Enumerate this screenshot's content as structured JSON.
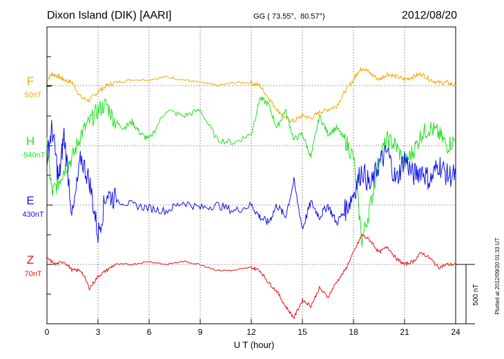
{
  "chart_data": {
    "type": "line",
    "title_left": "Dixon Island (DIK)  [AARI]",
    "title_center": "GG ( 73.55°,  80.57°)",
    "title_right": "2012/08/20",
    "xlabel": "U T (hour)",
    "xlim": [
      0,
      24
    ],
    "xticks": [
      "0",
      "3",
      "6",
      "9",
      "12",
      "15",
      "18",
      "21",
      "24"
    ],
    "grid": true,
    "scale_bar_label": "500 nT",
    "plotted_note": "Plotted at 2012/09/20 01:33 UT",
    "series": [
      {
        "name": "F",
        "baseline_label": "50nT",
        "color": "#f5a800",
        "x": [
          0,
          0.3,
          0.7,
          1.0,
          1.5,
          2.0,
          2.5,
          3.0,
          3.5,
          4.0,
          5.0,
          6.0,
          7.0,
          8.0,
          9.0,
          10.0,
          11.0,
          12.0,
          12.5,
          13.0,
          13.5,
          14.0,
          14.5,
          15.0,
          15.5,
          16.0,
          16.5,
          17.0,
          17.5,
          18.0,
          18.3,
          18.6,
          19.0,
          19.5,
          20.0,
          20.5,
          21.0,
          21.5,
          22.0,
          22.5,
          23.0,
          23.5,
          24.0
        ],
        "values": [
          10,
          20,
          15,
          10,
          5,
          -20,
          -25,
          -10,
          0,
          5,
          10,
          10,
          15,
          10,
          5,
          0,
          5,
          5,
          0,
          -20,
          -40,
          -55,
          -60,
          -50,
          -55,
          -45,
          -40,
          -35,
          -10,
          10,
          25,
          30,
          20,
          10,
          20,
          15,
          10,
          15,
          20,
          10,
          5,
          5,
          0
        ]
      },
      {
        "name": "H",
        "baseline_label": "-540nT",
        "color": "#22e022",
        "x": [
          0,
          0.3,
          0.7,
          1.0,
          1.5,
          2.0,
          2.5,
          3.0,
          3.5,
          4.0,
          4.5,
          5.0,
          5.5,
          6.0,
          7.0,
          8.0,
          9.0,
          10.0,
          11.0,
          12.0,
          12.5,
          13.0,
          13.5,
          14.0,
          14.5,
          15.0,
          15.5,
          16.0,
          16.5,
          17.0,
          17.5,
          18.0,
          18.5,
          19.0,
          19.5,
          20.0,
          20.5,
          21.0,
          21.5,
          22.0,
          22.5,
          23.0,
          23.5,
          24.0
        ],
        "values": [
          0,
          -80,
          -60,
          -40,
          -20,
          20,
          40,
          60,
          70,
          40,
          30,
          40,
          20,
          10,
          60,
          50,
          60,
          10,
          5,
          20,
          80,
          70,
          30,
          60,
          10,
          20,
          -20,
          50,
          20,
          30,
          10,
          -20,
          -160,
          -100,
          -20,
          10,
          0,
          -30,
          -10,
          20,
          30,
          20,
          0,
          10
        ]
      },
      {
        "name": "E",
        "baseline_label": "430nT",
        "color": "#1010ee",
        "x": [
          0,
          0.3,
          0.7,
          1.0,
          1.5,
          2.0,
          2.5,
          3.0,
          3.5,
          4.0,
          5.0,
          6.0,
          7.0,
          8.0,
          9.0,
          10.0,
          11.0,
          12.0,
          12.5,
          13.0,
          13.5,
          14.0,
          14.5,
          15.0,
          15.5,
          16.0,
          16.5,
          17.0,
          17.5,
          18.0,
          18.5,
          19.0,
          19.5,
          20.0,
          20.5,
          21.0,
          21.5,
          22.0,
          22.5,
          23.0,
          23.5,
          24.0
        ],
        "values": [
          80,
          130,
          40,
          120,
          -20,
          80,
          40,
          -50,
          20,
          10,
          0,
          -5,
          -10,
          5,
          -5,
          0,
          -10,
          0,
          -20,
          -30,
          0,
          -20,
          40,
          -40,
          5,
          -20,
          0,
          -30,
          -10,
          20,
          60,
          30,
          70,
          90,
          40,
          80,
          50,
          60,
          40,
          70,
          50,
          50
        ]
      },
      {
        "name": "Z",
        "baseline_label": "70nT",
        "color": "#ee1010",
        "x": [
          0,
          0.5,
          1.0,
          1.5,
          2.0,
          2.5,
          3.0,
          3.5,
          4.0,
          5.0,
          6.0,
          7.0,
          8.0,
          9.0,
          10.0,
          11.0,
          12.0,
          12.5,
          13.0,
          13.5,
          14.0,
          14.5,
          15.0,
          15.5,
          16.0,
          16.5,
          17.0,
          17.5,
          18.0,
          18.5,
          19.0,
          19.5,
          20.0,
          20.5,
          21.0,
          21.5,
          22.0,
          22.5,
          23.0,
          23.5,
          24.0
        ],
        "values": [
          10,
          0,
          5,
          -10,
          -10,
          -40,
          -20,
          -10,
          0,
          0,
          5,
          0,
          5,
          0,
          -10,
          -10,
          -5,
          -10,
          -30,
          -45,
          -70,
          -90,
          -60,
          -70,
          -40,
          -55,
          -30,
          -10,
          20,
          50,
          40,
          20,
          30,
          10,
          0,
          5,
          20,
          10,
          -5,
          0,
          0
        ]
      }
    ]
  }
}
